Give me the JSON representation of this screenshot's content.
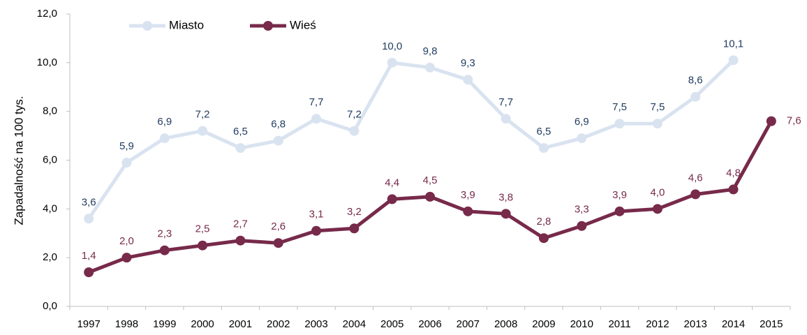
{
  "chart_data": {
    "type": "line",
    "y_label": "Zapadalność  na 100 tys.",
    "categories": [
      "1997",
      "1998",
      "1999",
      "2000",
      "2001",
      "2002",
      "2003",
      "2004",
      "2005",
      "2006",
      "2007",
      "2008",
      "2009",
      "2010",
      "2011",
      "2012",
      "2013",
      "2014",
      "2015"
    ],
    "series": [
      {
        "name": "Miasto",
        "color": "#d9e3f0",
        "label_color": "#1f3a5f",
        "values": [
          3.6,
          5.9,
          6.9,
          7.2,
          6.5,
          6.8,
          7.7,
          7.2,
          10.0,
          9.8,
          9.3,
          7.7,
          6.5,
          6.9,
          7.5,
          7.5,
          8.6,
          10.1,
          null
        ],
        "value_labels": [
          "3,6",
          "5,9",
          "6,9",
          "7,2",
          "6,5",
          "6,8",
          "7,7",
          "7,2",
          "10,0",
          "9,8",
          "9,3",
          "7,7",
          "6,5",
          "6,9",
          "7,5",
          "7,5",
          "8,6",
          "10,1",
          null
        ]
      },
      {
        "name": "Wieś",
        "color": "#772a4a",
        "label_color": "#772a4a",
        "values": [
          1.4,
          2.0,
          2.3,
          2.5,
          2.7,
          2.6,
          3.1,
          3.2,
          4.4,
          4.5,
          3.9,
          3.8,
          2.8,
          3.3,
          3.9,
          4.0,
          4.6,
          4.8,
          7.6
        ],
        "value_labels": [
          "1,4",
          "2,0",
          "2,3",
          "2,5",
          "2,7",
          "2,6",
          "3,1",
          "3,2",
          "4,4",
          "4,5",
          "3,9",
          "3,8",
          "2,8",
          "3,3",
          "3,9",
          "4,0",
          "4,6",
          "4,8",
          "7,6"
        ]
      }
    ],
    "ylim": [
      0,
      12
    ],
    "yticks": [
      {
        "value": 0,
        "label": "0,0"
      },
      {
        "value": 2,
        "label": "2,0"
      },
      {
        "value": 4,
        "label": "4,0"
      },
      {
        "value": 6,
        "label": "6,0"
      },
      {
        "value": 8,
        "label": "8,0"
      },
      {
        "value": 10,
        "label": "10,0"
      },
      {
        "value": 12,
        "label": "12,0"
      }
    ],
    "legend": "top-left"
  }
}
